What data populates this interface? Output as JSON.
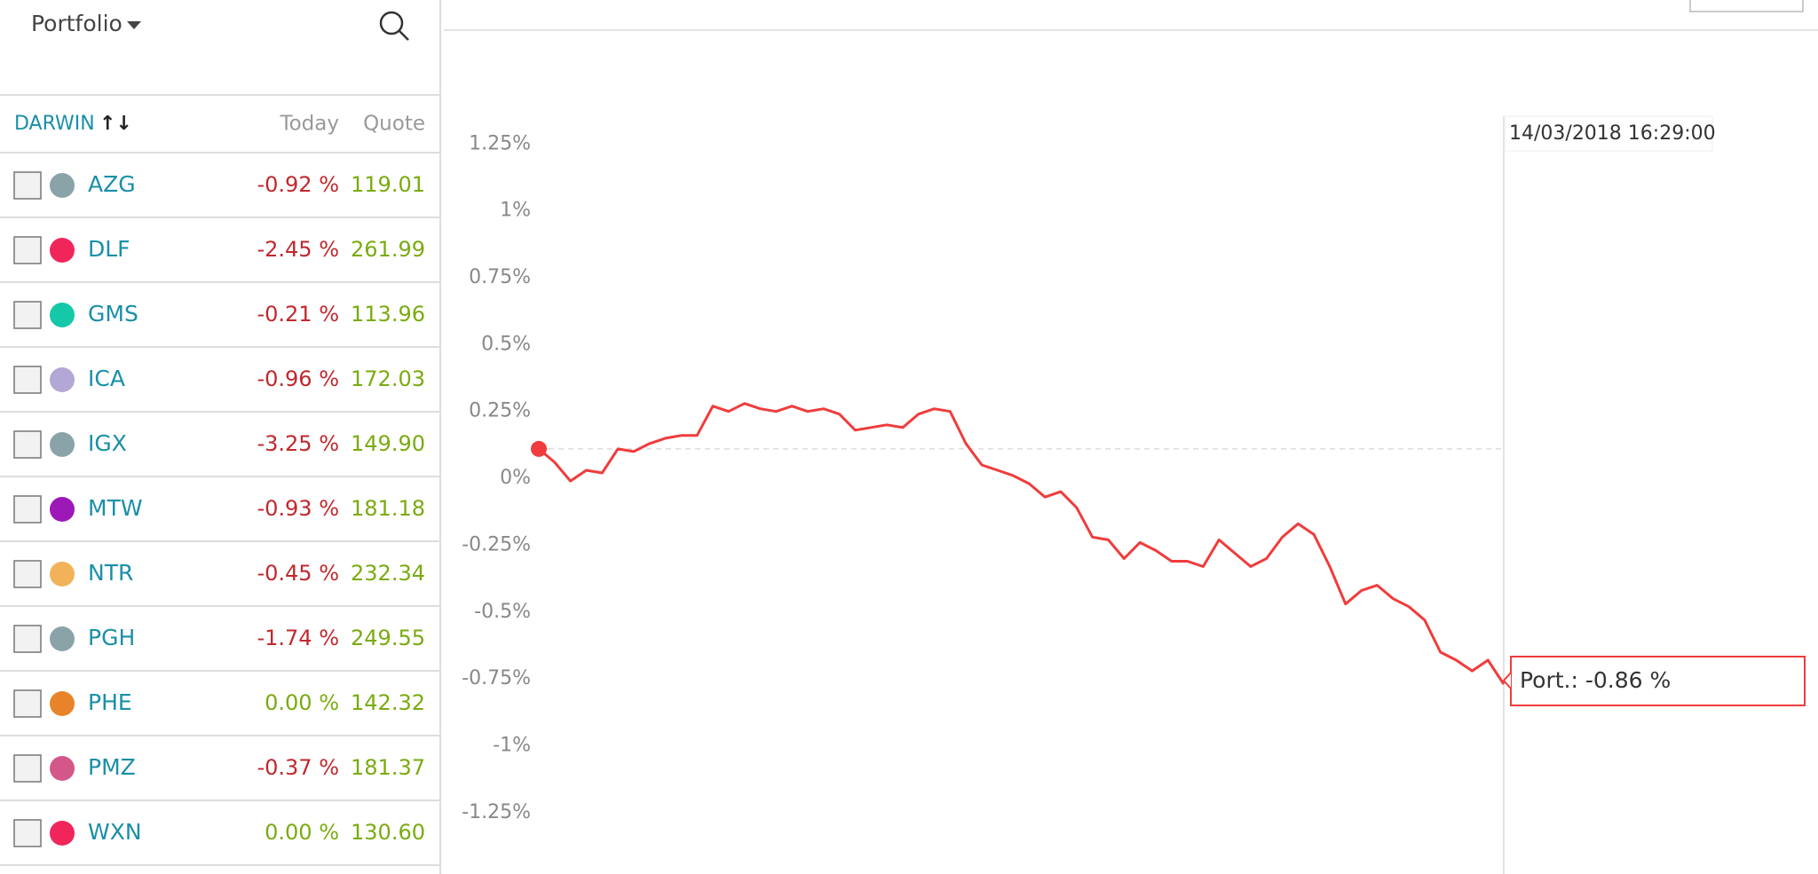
{
  "sidebar": {
    "title": "Portfolio",
    "columns": [
      "DARWIN",
      "Today",
      "Quote"
    ],
    "rows": [
      {
        "name": "AZG",
        "color": "#8aa3a8",
        "today": "-0.92 %",
        "quote": "119.01"
      },
      {
        "name": "DLF",
        "color": "#f0265a",
        "today": "-2.45 %",
        "quote": "261.99"
      },
      {
        "name": "GMS",
        "color": "#14c8a8",
        "today": "-0.21 %",
        "quote": "113.96"
      },
      {
        "name": "ICA",
        "color": "#b3a7d6",
        "today": "-0.96 %",
        "quote": "172.03"
      },
      {
        "name": "IGX",
        "color": "#8aa3a8",
        "today": "-3.25 %",
        "quote": "149.90"
      },
      {
        "name": "MTW",
        "color": "#9c19b8",
        "today": "-0.93 %",
        "quote": "181.18"
      },
      {
        "name": "NTR",
        "color": "#f2b25a",
        "today": "-0.45 %",
        "quote": "232.34"
      },
      {
        "name": "PGH",
        "color": "#8aa3a8",
        "today": "-1.74 %",
        "quote": "249.55"
      },
      {
        "name": "PHE",
        "color": "#e8832a",
        "today": "0.00 %",
        "quote": "142.32"
      },
      {
        "name": "PMZ",
        "color": "#d4578a",
        "today": "-0.37 %",
        "quote": "181.37"
      },
      {
        "name": "WXN",
        "color": "#f0265a",
        "today": "0.00 %",
        "quote": "130.60"
      }
    ]
  },
  "chart_data": {
    "type": "line",
    "color": "#f03c3c",
    "tooltip": "14/03/2018 16:29:00",
    "annotation": "Port.: -0.86 %",
    "values": [
      0.11,
      0.06,
      -0.01,
      0.03,
      0.02,
      0.11,
      0.1,
      0.13,
      0.15,
      0.16,
      0.16,
      0.27,
      0.25,
      0.28,
      0.26,
      0.25,
      0.27,
      0.25,
      0.26,
      0.24,
      0.18,
      0.19,
      0.2,
      0.19,
      0.24,
      0.26,
      0.25,
      0.13,
      0.05,
      0.03,
      0.01,
      -0.02,
      -0.07,
      -0.05,
      -0.11,
      -0.22,
      -0.23,
      -0.3,
      -0.24,
      -0.27,
      -0.31,
      -0.31,
      -0.33,
      -0.23,
      -0.28,
      -0.33,
      -0.3,
      -0.22,
      -0.17,
      -0.21,
      -0.33,
      -0.47,
      -0.42,
      -0.4,
      -0.45,
      -0.48,
      -0.53,
      -0.65,
      -0.68,
      -0.72,
      -0.68,
      -0.77
    ],
    "ylim": [
      -1.4,
      1.5
    ],
    "yticks": [
      {
        "value": 1.25,
        "label": "1.25%"
      },
      {
        "value": 1,
        "label": "1%"
      },
      {
        "value": 0.75,
        "label": "0.75%"
      },
      {
        "value": 0.5,
        "label": "0.5%"
      },
      {
        "value": 0.25,
        "label": "0.25%"
      },
      {
        "value": 0,
        "label": "0%"
      },
      {
        "value": -0.25,
        "label": "-0.25%"
      },
      {
        "value": -0.5,
        "label": "-0.5%"
      },
      {
        "value": -0.75,
        "label": "-0.75%"
      },
      {
        "value": -1,
        "label": "-1%"
      },
      {
        "value": -1.25,
        "label": "-1.25%"
      }
    ]
  }
}
